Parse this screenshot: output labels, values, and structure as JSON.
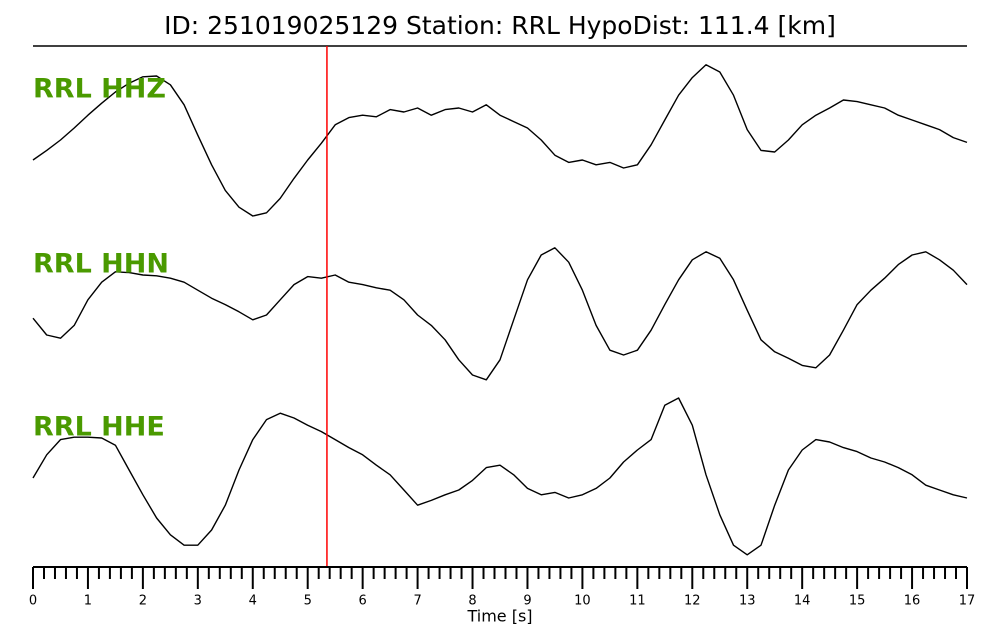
{
  "chart_data": {
    "type": "line",
    "title": "ID: 251019025129   Station: RRL   HypoDist:   111.4 [km]",
    "xlabel": "Time [s]",
    "x": [
      0,
      0.25,
      0.5,
      0.75,
      1,
      1.25,
      1.5,
      1.75,
      2,
      2.25,
      2.5,
      2.75,
      3,
      3.25,
      3.5,
      3.75,
      4,
      4.25,
      4.5,
      4.75,
      5,
      5.25,
      5.5,
      5.75,
      6,
      6.25,
      6.5,
      6.75,
      7,
      7.25,
      7.5,
      7.75,
      8,
      8.25,
      8.5,
      8.75,
      9,
      9.25,
      9.5,
      9.75,
      10,
      10.25,
      10.5,
      10.75,
      11,
      11.25,
      11.5,
      11.75,
      12,
      12.25,
      12.5,
      12.75,
      13,
      13.25,
      13.5,
      13.75,
      14,
      14.25,
      14.5,
      14.75,
      15,
      15.25,
      15.5,
      15.75,
      16,
      16.25,
      16.5,
      16.75,
      17
    ],
    "series": [
      {
        "name": "RRL HHZ",
        "color": "#000000",
        "values": [
          -0.25,
          -0.13,
          0,
          0.15,
          0.31,
          0.46,
          0.6,
          0.71,
          0.79,
          0.8,
          0.69,
          0.44,
          0.06,
          -0.31,
          -0.63,
          -0.84,
          -0.95,
          -0.91,
          -0.73,
          -0.48,
          -0.25,
          -0.04,
          0.19,
          0.28,
          0.31,
          0.29,
          0.38,
          0.35,
          0.4,
          0.31,
          0.38,
          0.4,
          0.35,
          0.44,
          0.31,
          0.23,
          0.15,
          0,
          -0.19,
          -0.28,
          -0.25,
          -0.31,
          -0.28,
          -0.35,
          -0.31,
          -0.06,
          0.25,
          0.56,
          0.78,
          0.94,
          0.85,
          0.56,
          0.13,
          -0.13,
          -0.15,
          0,
          0.19,
          0.31,
          0.4,
          0.5,
          0.48,
          0.44,
          0.4,
          0.31,
          0.25,
          0.19,
          0.13,
          0.03,
          -0.03
        ]
      },
      {
        "name": "RRL HHN",
        "color": "#000000",
        "values": [
          -0.04,
          -0.25,
          -0.29,
          -0.13,
          0.19,
          0.41,
          0.54,
          0.53,
          0.5,
          0.49,
          0.46,
          0.41,
          0.31,
          0.21,
          0.13,
          0.04,
          -0.06,
          0,
          0.19,
          0.38,
          0.48,
          0.46,
          0.5,
          0.41,
          0.38,
          0.34,
          0.31,
          0.19,
          0,
          -0.13,
          -0.31,
          -0.56,
          -0.75,
          -0.81,
          -0.56,
          -0.06,
          0.44,
          0.75,
          0.84,
          0.66,
          0.31,
          -0.13,
          -0.44,
          -0.5,
          -0.44,
          -0.19,
          0.13,
          0.44,
          0.69,
          0.79,
          0.71,
          0.44,
          0.06,
          -0.31,
          -0.46,
          -0.54,
          -0.63,
          -0.66,
          -0.5,
          -0.19,
          0.13,
          0.31,
          0.46,
          0.63,
          0.75,
          0.79,
          0.69,
          0.56,
          0.38
        ]
      },
      {
        "name": "RRL HHE",
        "color": "#000000",
        "values": [
          0,
          0.29,
          0.48,
          0.51,
          0.51,
          0.5,
          0.41,
          0.1,
          -0.21,
          -0.5,
          -0.71,
          -0.84,
          -0.84,
          -0.65,
          -0.34,
          0.1,
          0.48,
          0.73,
          0.81,
          0.75,
          0.66,
          0.58,
          0.48,
          0.38,
          0.29,
          0.16,
          0.04,
          -0.15,
          -0.34,
          -0.28,
          -0.21,
          -0.15,
          -0.03,
          0.13,
          0.16,
          0.04,
          -0.13,
          -0.21,
          -0.18,
          -0.25,
          -0.21,
          -0.13,
          0,
          0.2,
          0.35,
          0.48,
          0.91,
          1.0,
          0.66,
          0.04,
          -0.46,
          -0.84,
          -0.96,
          -0.84,
          -0.34,
          0.1,
          0.35,
          0.48,
          0.45,
          0.38,
          0.33,
          0.25,
          0.2,
          0.13,
          0.04,
          -0.09,
          -0.15,
          -0.21,
          -0.25
        ]
      }
    ],
    "label_color": "#4a9a00",
    "pick": 5.35,
    "pick_color": "#ff0000",
    "xlim": [
      0,
      17
    ],
    "xticks": [
      0,
      1,
      2,
      3,
      4,
      5,
      6,
      7,
      8,
      9,
      10,
      11,
      12,
      13,
      14,
      15,
      16,
      17
    ],
    "xminorticks": [
      0.2,
      0.4,
      0.6,
      0.8,
      1.2,
      1.4,
      1.6,
      1.8,
      2.2,
      2.4,
      2.6,
      2.8,
      3.2,
      3.4,
      3.6,
      3.8,
      4.2,
      4.4,
      4.6,
      4.8,
      5.2,
      5.4,
      5.6,
      5.8,
      6.2,
      6.4,
      6.6,
      6.8,
      7.2,
      7.4,
      7.6,
      7.8,
      8.2,
      8.4,
      8.6,
      8.8,
      9.2,
      9.4,
      9.6,
      9.8,
      10.2,
      10.4,
      10.6,
      10.8,
      11.2,
      11.4,
      11.6,
      11.8,
      12.2,
      12.4,
      12.6,
      12.8,
      13.2,
      13.4,
      13.6,
      13.8,
      14.2,
      14.4,
      14.6,
      14.8,
      15.2,
      15.4,
      15.6,
      15.8,
      16.2,
      16.4,
      16.6,
      16.8
    ],
    "ylim": [
      -1,
      1
    ]
  }
}
